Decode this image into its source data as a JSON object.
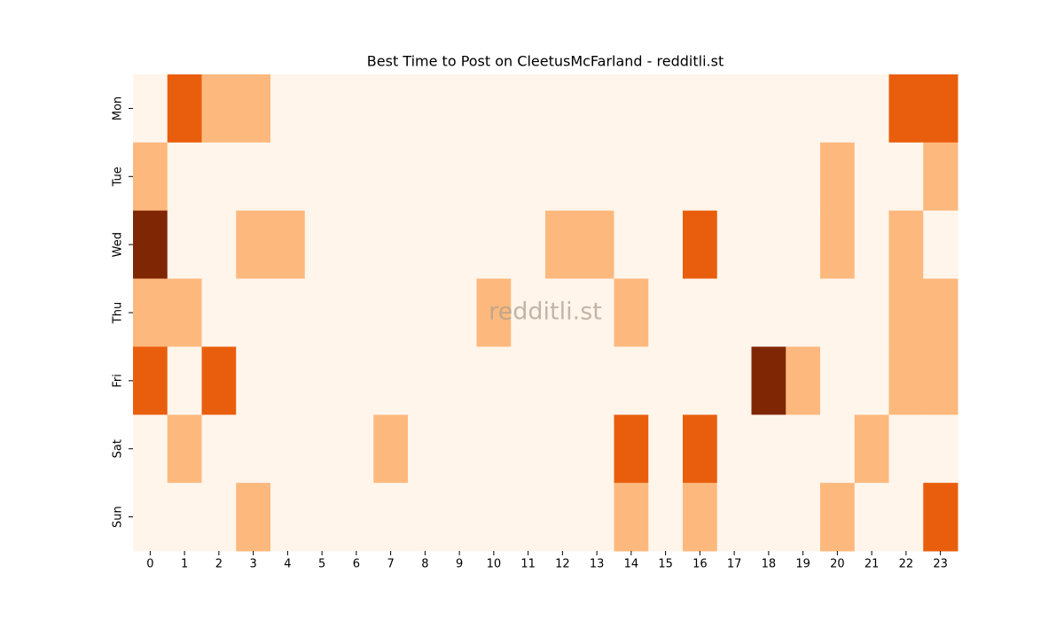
{
  "chart_data": {
    "type": "heatmap",
    "title": "Best Time to Post on CleetusMcFarland - redditli.st",
    "annotation": "redditli.st",
    "x": [
      0,
      1,
      2,
      3,
      4,
      5,
      6,
      7,
      8,
      9,
      10,
      11,
      12,
      13,
      14,
      15,
      16,
      17,
      18,
      19,
      20,
      21,
      22,
      23
    ],
    "y": [
      "Mon",
      "Tue",
      "Wed",
      "Thu",
      "Fri",
      "Sat",
      "Sun"
    ],
    "values": [
      [
        0,
        2,
        1,
        1,
        0,
        0,
        0,
        0,
        0,
        0,
        0,
        0,
        0,
        0,
        0,
        0,
        0,
        0,
        0,
        0,
        0,
        0,
        2,
        2
      ],
      [
        1,
        0,
        0,
        0,
        0,
        0,
        0,
        0,
        0,
        0,
        0,
        0,
        0,
        0,
        0,
        0,
        0,
        0,
        0,
        0,
        1,
        0,
        0,
        1
      ],
      [
        3,
        0,
        0,
        1,
        1,
        0,
        0,
        0,
        0,
        0,
        0,
        0,
        1,
        1,
        0,
        0,
        2,
        0,
        0,
        0,
        1,
        0,
        1,
        0
      ],
      [
        1,
        1,
        0,
        0,
        0,
        0,
        0,
        0,
        0,
        0,
        1,
        0,
        0,
        0,
        1,
        0,
        0,
        0,
        0,
        0,
        0,
        0,
        1,
        1
      ],
      [
        2,
        0,
        2,
        0,
        0,
        0,
        0,
        0,
        0,
        0,
        0,
        0,
        0,
        0,
        0,
        0,
        0,
        0,
        3,
        1,
        0,
        0,
        1,
        1
      ],
      [
        0,
        1,
        0,
        0,
        0,
        0,
        0,
        1,
        0,
        0,
        0,
        0,
        0,
        0,
        2,
        0,
        2,
        0,
        0,
        0,
        0,
        1,
        0,
        0
      ],
      [
        0,
        0,
        0,
        1,
        0,
        0,
        0,
        0,
        0,
        0,
        0,
        0,
        0,
        0,
        1,
        0,
        1,
        0,
        0,
        0,
        1,
        0,
        0,
        2
      ]
    ],
    "zlim": [
      0,
      3
    ],
    "colorscale": [
      "#fff5eb",
      "#fdb97d",
      "#e95e0d",
      "#7f2704"
    ]
  }
}
